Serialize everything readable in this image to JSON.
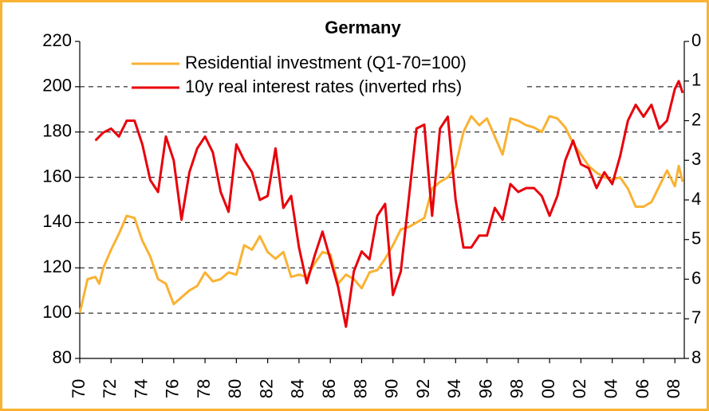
{
  "chart_data": {
    "type": "line",
    "title": "Germany",
    "ylim": [
      80,
      220
    ],
    "yticks": [
      80,
      100,
      120,
      140,
      160,
      180,
      200,
      220
    ],
    "y2lim": [
      0,
      8
    ],
    "y2ticks": [
      0,
      1,
      2,
      3,
      4,
      5,
      6,
      7,
      8
    ],
    "y2_inverted": true,
    "xlim": [
      1970,
      2008.6
    ],
    "xticks": [
      {
        "value": 1970,
        "label": "70"
      },
      {
        "value": 1972,
        "label": "72"
      },
      {
        "value": 1974,
        "label": "74"
      },
      {
        "value": 1976,
        "label": "76"
      },
      {
        "value": 1978,
        "label": "78"
      },
      {
        "value": 1980,
        "label": "80"
      },
      {
        "value": 1982,
        "label": "82"
      },
      {
        "value": 1984,
        "label": "84"
      },
      {
        "value": 1986,
        "label": "86"
      },
      {
        "value": 1988,
        "label": "88"
      },
      {
        "value": 1990,
        "label": "90"
      },
      {
        "value": 1992,
        "label": "92"
      },
      {
        "value": 1994,
        "label": "94"
      },
      {
        "value": 1996,
        "label": "96"
      },
      {
        "value": 1998,
        "label": "98"
      },
      {
        "value": 2000,
        "label": "00"
      },
      {
        "value": 2002,
        "label": "02"
      },
      {
        "value": 2004,
        "label": "04"
      },
      {
        "value": 2006,
        "label": "06"
      },
      {
        "value": 2008,
        "label": "08"
      }
    ],
    "grid": true,
    "legend": "top-left",
    "series": [
      {
        "name": "Residential investment (Q1-70=100)",
        "color": "#f9b233",
        "axis": "y",
        "x": [
          1970,
          1970.5,
          1971,
          1971.25,
          1971.5,
          1972,
          1972.5,
          1973,
          1973.5,
          1974,
          1974.5,
          1975,
          1975.5,
          1976,
          1976.5,
          1977,
          1977.5,
          1978,
          1978.5,
          1979,
          1979.5,
          1980,
          1980.5,
          1981,
          1981.5,
          1982,
          1982.5,
          1983,
          1983.5,
          1984,
          1984.5,
          1985,
          1985.5,
          1986,
          1986.5,
          1987,
          1987.5,
          1988,
          1988.5,
          1989,
          1989.5,
          1990,
          1990.5,
          1991,
          1991.5,
          1992,
          1992.5,
          1993,
          1993.5,
          1994,
          1994.5,
          1995,
          1995.5,
          1996,
          1996.5,
          1997,
          1997.5,
          1998,
          1998.5,
          1999,
          1999.5,
          2000,
          2000.5,
          2001,
          2001.5,
          2002,
          2002.5,
          2003,
          2003.5,
          2004,
          2004.5,
          2005,
          2005.5,
          2006,
          2006.5,
          2007,
          2007.5,
          2008,
          2008.25,
          2008.5
        ],
        "values": [
          100,
          115,
          116,
          113,
          120,
          128,
          135,
          143,
          142,
          132,
          125,
          115,
          113,
          104,
          107,
          110,
          112,
          118,
          114,
          115,
          118,
          117,
          130,
          128,
          134,
          127,
          124,
          127,
          116,
          117,
          116,
          122,
          127,
          126,
          113,
          117,
          115,
          111,
          118,
          119,
          124,
          130,
          137,
          138,
          140,
          142,
          155,
          158,
          160,
          165,
          180,
          187,
          183,
          186,
          178,
          170,
          186,
          185,
          183,
          182,
          180,
          187,
          186,
          182,
          175,
          170,
          165,
          162,
          160,
          159,
          160,
          155,
          147,
          147,
          149,
          156,
          163,
          156,
          165,
          158
        ]
      },
      {
        "name": "10y real interest rates (inverted rhs)",
        "color": "#e8000b",
        "axis": "y2",
        "x": [
          1971,
          1971.5,
          1972,
          1972.5,
          1973,
          1973.5,
          1974,
          1974.5,
          1975,
          1975.5,
          1976,
          1976.5,
          1977,
          1977.5,
          1978,
          1978.5,
          1979,
          1979.5,
          1980,
          1980.5,
          1981,
          1981.5,
          1982,
          1982.5,
          1983,
          1983.5,
          1984,
          1984.5,
          1985,
          1985.5,
          1986,
          1986.5,
          1987,
          1987.5,
          1988,
          1988.5,
          1989,
          1989.5,
          1990,
          1990.5,
          1991,
          1991.5,
          1992,
          1992.5,
          1993,
          1993.5,
          1994,
          1994.5,
          1995,
          1995.5,
          1996,
          1996.5,
          1997,
          1997.5,
          1998,
          1998.5,
          1999,
          1999.5,
          2000,
          2000.5,
          2001,
          2001.5,
          2002,
          2002.5,
          2003,
          2003.5,
          2004,
          2004.5,
          2005,
          2005.5,
          2006,
          2006.5,
          2007,
          2007.5,
          2008,
          2008.25,
          2008.5
        ],
        "values": [
          2.5,
          2.3,
          2.2,
          2.4,
          2.0,
          2.0,
          2.6,
          3.5,
          3.8,
          2.4,
          3.0,
          4.5,
          3.3,
          2.7,
          2.4,
          2.8,
          3.8,
          4.3,
          2.6,
          3.0,
          3.3,
          4.0,
          3.9,
          2.7,
          4.2,
          3.9,
          5.2,
          6.1,
          5.4,
          4.8,
          5.5,
          6.2,
          7.2,
          5.8,
          5.3,
          5.5,
          4.4,
          4.1,
          6.4,
          5.8,
          4.0,
          2.2,
          2.1,
          4.4,
          2.2,
          1.9,
          4.0,
          5.2,
          5.2,
          4.9,
          4.9,
          4.2,
          4.5,
          3.6,
          3.8,
          3.7,
          3.7,
          3.9,
          4.4,
          3.9,
          3.0,
          2.5,
          3.1,
          3.2,
          3.7,
          3.3,
          3.6,
          2.9,
          2.0,
          1.6,
          1.9,
          1.6,
          2.2,
          2.0,
          1.2,
          1.0,
          1.3
        ]
      }
    ]
  }
}
